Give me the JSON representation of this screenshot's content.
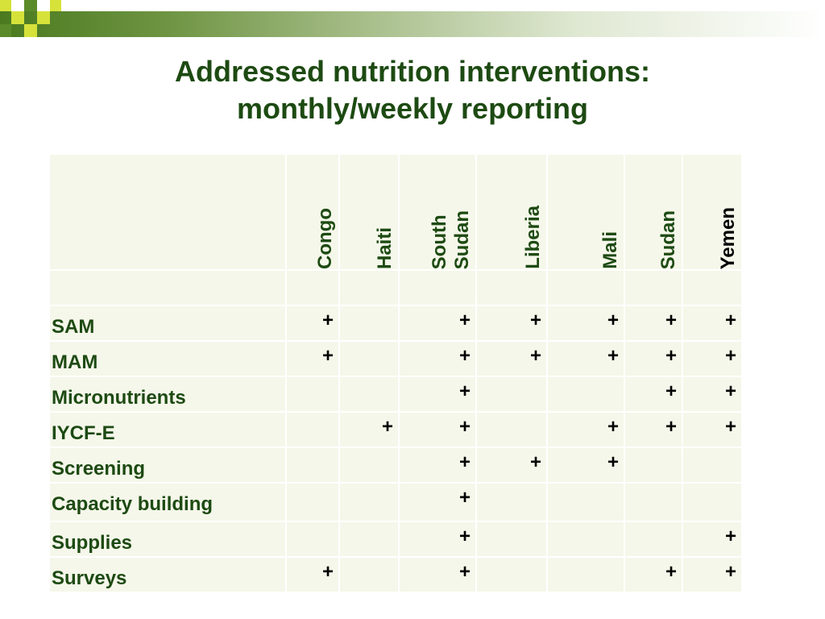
{
  "title_line1": "Addressed nutrition interventions:",
  "title_line2": "monthly/weekly reporting",
  "countries": [
    "Congo",
    "Haiti",
    "South\nSudan",
    "Liberia",
    "Mali",
    "Sudan",
    "Yemen"
  ],
  "mark": "+",
  "rows": [
    {
      "label": "SAM",
      "cells": [
        "+",
        "",
        "+",
        "+",
        "+",
        "+",
        "+"
      ]
    },
    {
      "label": "MAM",
      "cells": [
        "+",
        "",
        "+",
        "+",
        "+",
        "+",
        "+"
      ]
    },
    {
      "label": "Micronutrients",
      "cells": [
        "",
        "",
        "+",
        "",
        "",
        "+",
        "+"
      ]
    },
    {
      "label": "IYCF-E",
      "cells": [
        "",
        "+",
        "+",
        "",
        "+",
        "+",
        "+"
      ]
    },
    {
      "label": "Screening",
      "cells": [
        "",
        "",
        "+",
        "+",
        "+",
        "",
        ""
      ]
    },
    {
      "label": "Capacity building",
      "cells": [
        "",
        "",
        "+",
        "",
        "",
        "",
        ""
      ]
    },
    {
      "label": "Supplies",
      "cells": [
        "",
        "",
        "+",
        "",
        "",
        "",
        "+"
      ]
    },
    {
      "label": "Surveys",
      "cells": [
        "+",
        "",
        "+",
        "",
        "",
        "+",
        "+"
      ]
    }
  ],
  "colors": {
    "title": "#1d4a12",
    "cell_bg": "#f5f7ea",
    "band_dark": "#4a7a1f",
    "accent_square": "#d6e23a"
  }
}
